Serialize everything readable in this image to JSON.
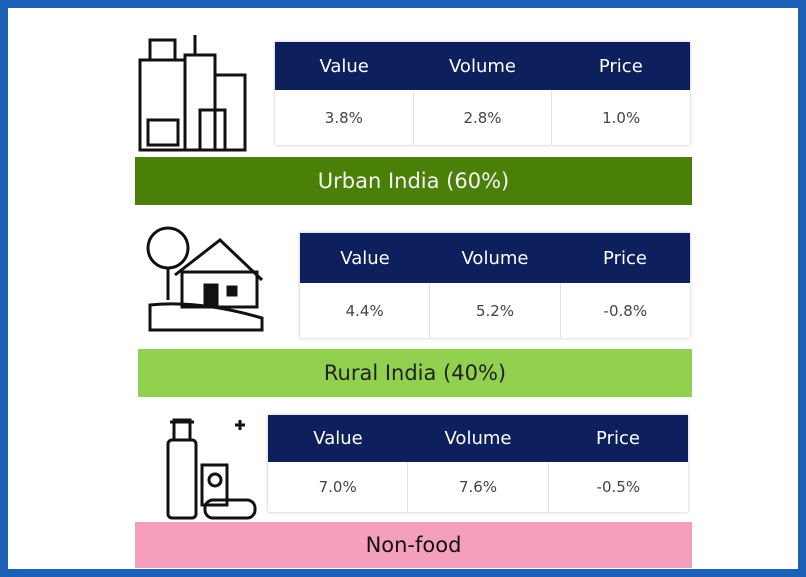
{
  "sections": [
    {
      "headers": [
        "Value",
        "Volume",
        "Price"
      ],
      "values": [
        "3.8%",
        "2.8%",
        "1.0%"
      ],
      "label": "Urban India (60%)"
    },
    {
      "headers": [
        "Value",
        "Volume",
        "Price"
      ],
      "values": [
        "4.4%",
        "5.2%",
        "-0.8%"
      ],
      "label": "Rural India (40%)"
    },
    {
      "headers": [
        "Value",
        "Volume",
        "Price"
      ],
      "values": [
        "7.0%",
        "7.6%",
        "-0.5%"
      ],
      "label": "Non-food"
    }
  ]
}
